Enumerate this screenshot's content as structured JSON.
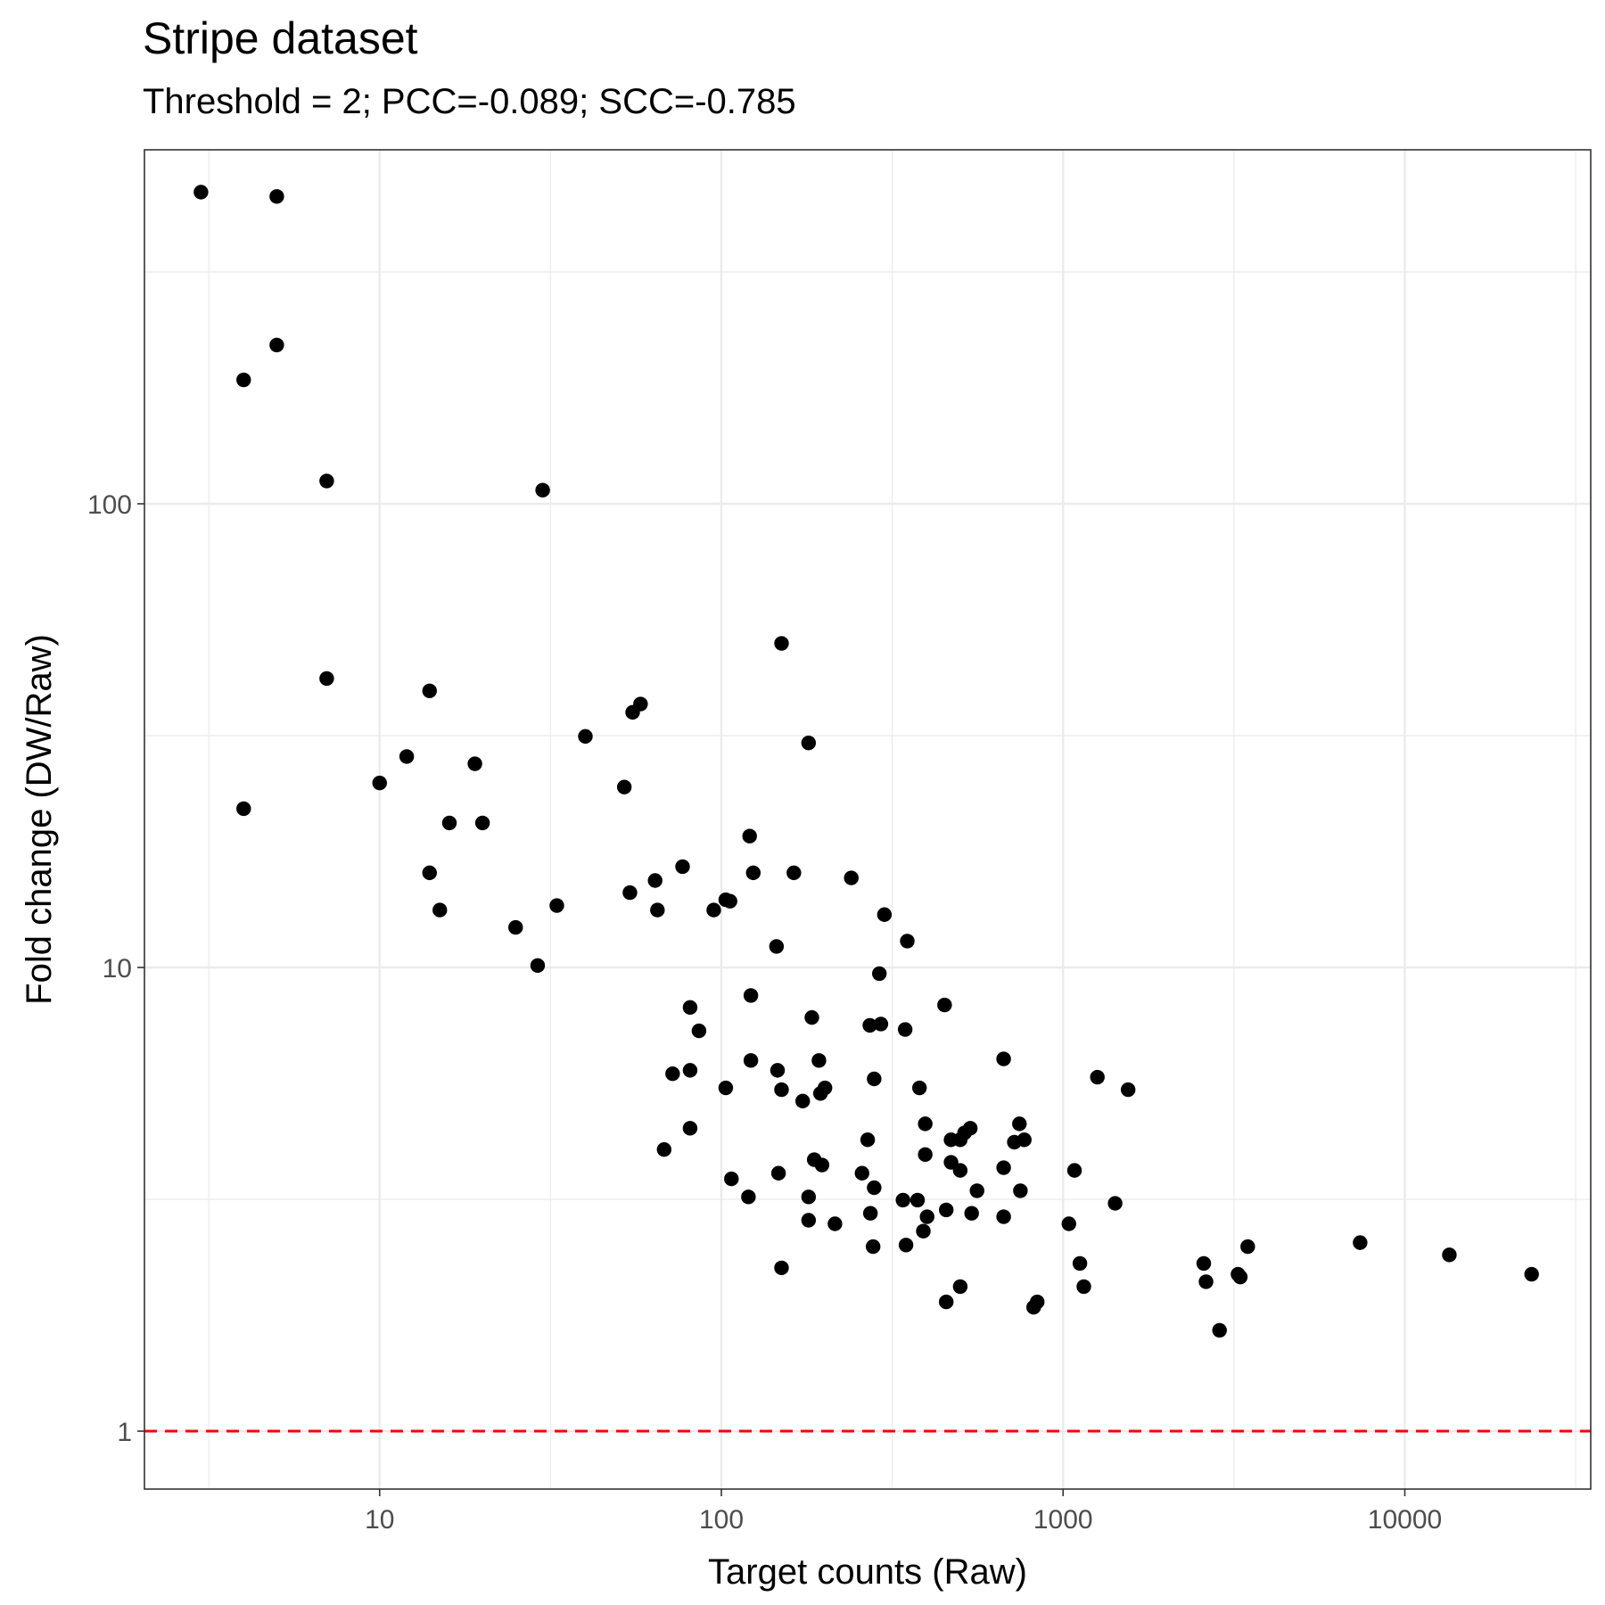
{
  "chart_data": {
    "type": "scatter",
    "title": "Stripe dataset",
    "subtitle": "Threshold = 2; PCC=-0.089; SCC=-0.785",
    "xlabel": "Target counts (Raw)",
    "ylabel": "Fold change (DW/Raw)",
    "x_scale": "log10",
    "y_scale": "log10",
    "xlim": [
      2.05,
      35000
    ],
    "ylim": [
      0.75,
      580
    ],
    "x_ticks": [
      10,
      100,
      1000,
      10000
    ],
    "x_tick_labels": [
      "10",
      "100",
      "1000",
      "10000"
    ],
    "y_ticks": [
      1,
      10,
      100
    ],
    "y_tick_labels": [
      "1",
      "10",
      "100"
    ],
    "grid": true,
    "reference_line": {
      "y": 1,
      "style": "dashed",
      "color": "#ff0000"
    },
    "point_color": "#000000",
    "points": [
      {
        "x": 3,
        "y": 470
      },
      {
        "x": 5,
        "y": 460
      },
      {
        "x": 5,
        "y": 220
      },
      {
        "x": 4,
        "y": 185
      },
      {
        "x": 7,
        "y": 112
      },
      {
        "x": 30,
        "y": 107
      },
      {
        "x": 7,
        "y": 42
      },
      {
        "x": 4,
        "y": 22
      },
      {
        "x": 14,
        "y": 39.5
      },
      {
        "x": 12,
        "y": 28.5
      },
      {
        "x": 10,
        "y": 25
      },
      {
        "x": 19,
        "y": 27.5
      },
      {
        "x": 16,
        "y": 20.5
      },
      {
        "x": 20,
        "y": 20.5
      },
      {
        "x": 14,
        "y": 16
      },
      {
        "x": 15,
        "y": 13.3
      },
      {
        "x": 25,
        "y": 12.2
      },
      {
        "x": 29,
        "y": 10.1
      },
      {
        "x": 33,
        "y": 13.6
      },
      {
        "x": 40,
        "y": 31.5
      },
      {
        "x": 52,
        "y": 24.5
      },
      {
        "x": 55,
        "y": 35.5
      },
      {
        "x": 58,
        "y": 37
      },
      {
        "x": 54,
        "y": 14.5
      },
      {
        "x": 64,
        "y": 15.4
      },
      {
        "x": 65,
        "y": 13.3
      },
      {
        "x": 77,
        "y": 16.5
      },
      {
        "x": 95,
        "y": 13.3
      },
      {
        "x": 103,
        "y": 14
      },
      {
        "x": 106,
        "y": 13.9
      },
      {
        "x": 150,
        "y": 50
      },
      {
        "x": 180,
        "y": 30.5
      },
      {
        "x": 121,
        "y": 19.2
      },
      {
        "x": 124,
        "y": 16
      },
      {
        "x": 163,
        "y": 16
      },
      {
        "x": 145,
        "y": 11.1
      },
      {
        "x": 240,
        "y": 15.6
      },
      {
        "x": 300,
        "y": 13
      },
      {
        "x": 350,
        "y": 11.4
      },
      {
        "x": 290,
        "y": 9.7
      },
      {
        "x": 81,
        "y": 8.2
      },
      {
        "x": 86,
        "y": 7.3
      },
      {
        "x": 122,
        "y": 8.7
      },
      {
        "x": 184,
        "y": 7.8
      },
      {
        "x": 272,
        "y": 7.5
      },
      {
        "x": 293,
        "y": 7.55
      },
      {
        "x": 345,
        "y": 7.35
      },
      {
        "x": 450,
        "y": 8.3
      },
      {
        "x": 72,
        "y": 5.9
      },
      {
        "x": 81,
        "y": 6
      },
      {
        "x": 103,
        "y": 5.5
      },
      {
        "x": 122,
        "y": 6.3
      },
      {
        "x": 146,
        "y": 6
      },
      {
        "x": 150,
        "y": 5.45
      },
      {
        "x": 173,
        "y": 5.15
      },
      {
        "x": 193,
        "y": 6.3
      },
      {
        "x": 195,
        "y": 5.35
      },
      {
        "x": 201,
        "y": 5.5
      },
      {
        "x": 280,
        "y": 5.75
      },
      {
        "x": 380,
        "y": 5.5
      },
      {
        "x": 670,
        "y": 6.35
      },
      {
        "x": 1260,
        "y": 5.8
      },
      {
        "x": 1550,
        "y": 5.45
      },
      {
        "x": 68,
        "y": 4.05
      },
      {
        "x": 81,
        "y": 4.5
      },
      {
        "x": 107,
        "y": 3.5
      },
      {
        "x": 120,
        "y": 3.2
      },
      {
        "x": 147,
        "y": 3.6
      },
      {
        "x": 150,
        "y": 2.25
      },
      {
        "x": 180,
        "y": 3.2
      },
      {
        "x": 180,
        "y": 2.85
      },
      {
        "x": 187,
        "y": 3.85
      },
      {
        "x": 197,
        "y": 3.75
      },
      {
        "x": 215,
        "y": 2.8
      },
      {
        "x": 258,
        "y": 3.6
      },
      {
        "x": 268,
        "y": 4.25
      },
      {
        "x": 273,
        "y": 2.95
      },
      {
        "x": 278,
        "y": 2.5
      },
      {
        "x": 280,
        "y": 3.35
      },
      {
        "x": 340,
        "y": 3.15
      },
      {
        "x": 347,
        "y": 2.52
      },
      {
        "x": 375,
        "y": 3.15
      },
      {
        "x": 390,
        "y": 2.7
      },
      {
        "x": 395,
        "y": 4.6
      },
      {
        "x": 395,
        "y": 3.95
      },
      {
        "x": 400,
        "y": 2.9
      },
      {
        "x": 455,
        "y": 3
      },
      {
        "x": 470,
        "y": 4.25
      },
      {
        "x": 470,
        "y": 3.8
      },
      {
        "x": 500,
        "y": 3.65
      },
      {
        "x": 500,
        "y": 4.25
      },
      {
        "x": 515,
        "y": 4.4
      },
      {
        "x": 535,
        "y": 4.5
      },
      {
        "x": 540,
        "y": 2.95
      },
      {
        "x": 560,
        "y": 3.3
      },
      {
        "x": 455,
        "y": 1.9
      },
      {
        "x": 500,
        "y": 2.05
      },
      {
        "x": 670,
        "y": 3.7
      },
      {
        "x": 670,
        "y": 2.9
      },
      {
        "x": 720,
        "y": 4.2
      },
      {
        "x": 745,
        "y": 4.6
      },
      {
        "x": 750,
        "y": 3.3
      },
      {
        "x": 770,
        "y": 4.25
      },
      {
        "x": 820,
        "y": 1.85
      },
      {
        "x": 840,
        "y": 1.9
      },
      {
        "x": 1040,
        "y": 2.8
      },
      {
        "x": 1080,
        "y": 3.65
      },
      {
        "x": 1120,
        "y": 2.3
      },
      {
        "x": 1150,
        "y": 2.05
      },
      {
        "x": 1420,
        "y": 3.1
      },
      {
        "x": 2580,
        "y": 2.3
      },
      {
        "x": 2620,
        "y": 2.1
      },
      {
        "x": 2870,
        "y": 1.65
      },
      {
        "x": 3250,
        "y": 2.18
      },
      {
        "x": 3300,
        "y": 2.15
      },
      {
        "x": 3470,
        "y": 2.5
      },
      {
        "x": 7400,
        "y": 2.55
      },
      {
        "x": 13500,
        "y": 2.4
      },
      {
        "x": 23500,
        "y": 2.18
      }
    ]
  }
}
